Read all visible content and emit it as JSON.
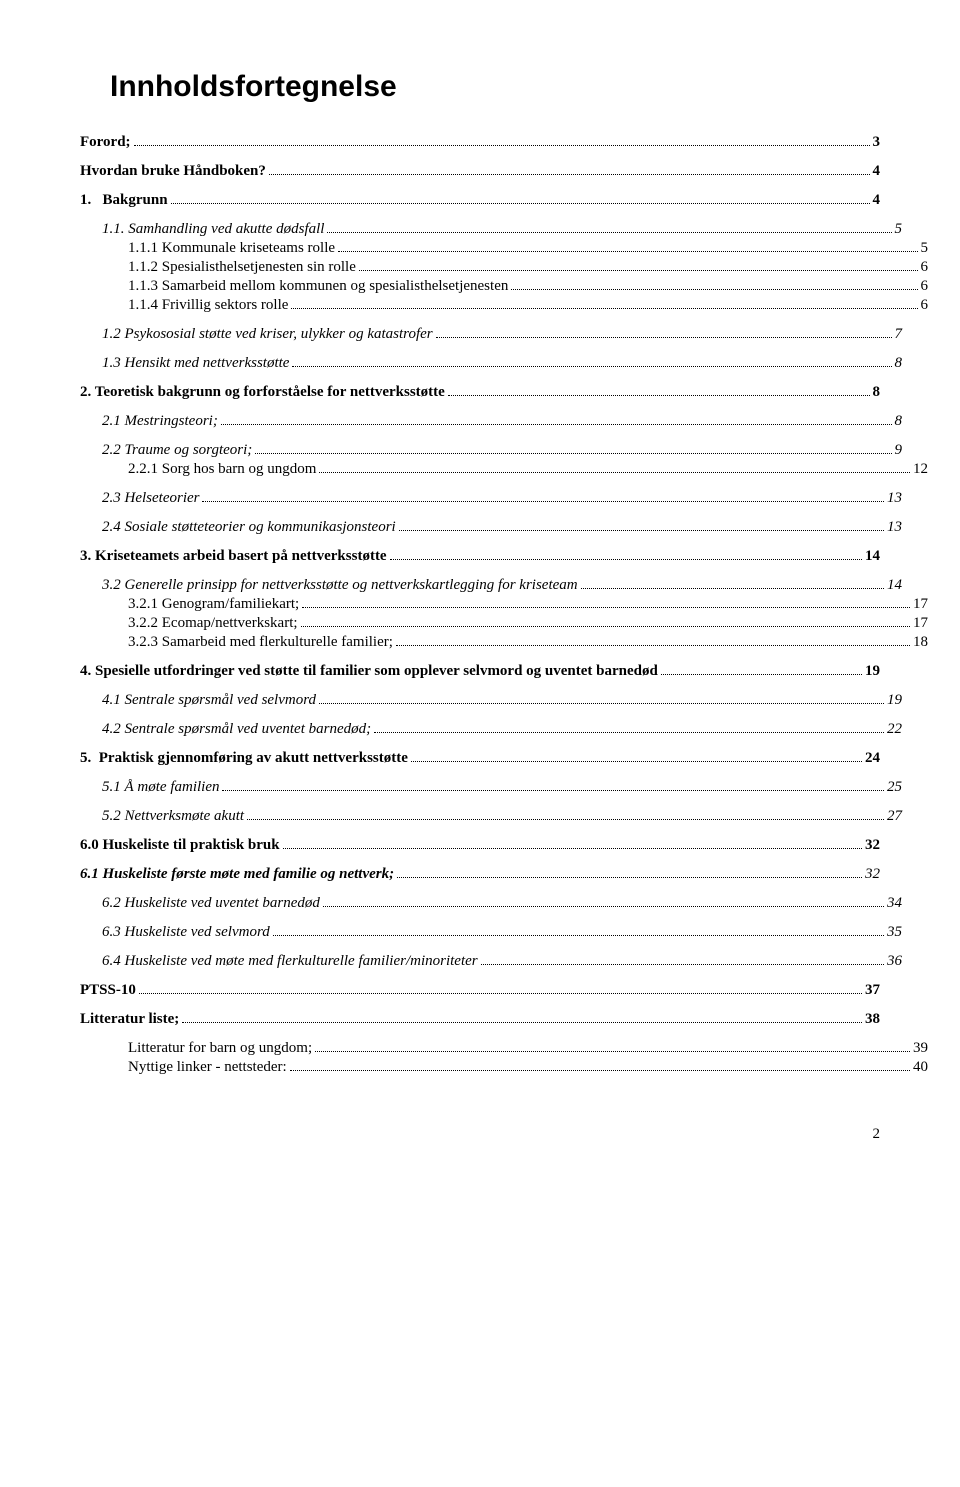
{
  "title": "Innholdsfortegnelse",
  "footer_page_number": "2",
  "entries": [
    {
      "level": "lvl1",
      "label": "Forord;",
      "page": "3",
      "tight": false
    },
    {
      "level": "lvl1",
      "label": "Hvordan bruke Håndboken?",
      "page": "4",
      "tight": false
    },
    {
      "level": "lvl1",
      "label": "1.   Bakgrunn",
      "page": "4",
      "tight": false
    },
    {
      "level": "lvl2",
      "label": "1.1. Samhandling ved akutte dødsfall",
      "page": "5",
      "tight": false
    },
    {
      "level": "lvl3",
      "label": "1.1.1 Kommunale kriseteams rolle",
      "page": "5",
      "tight": true
    },
    {
      "level": "lvl3",
      "label": "1.1.2 Spesialisthelsetjenesten sin rolle",
      "page": "6",
      "tight": true
    },
    {
      "level": "lvl3",
      "label": "1.1.3 Samarbeid mellom kommunen og spesialisthelsetjenesten",
      "page": "6",
      "tight": true
    },
    {
      "level": "lvl3",
      "label": "1.1.4 Frivillig sektors rolle",
      "page": "6",
      "tight": true
    },
    {
      "level": "lvl2",
      "label": "1.2 Psykososial støtte ved kriser, ulykker og katastrofer",
      "page": "7",
      "tight": false
    },
    {
      "level": "lvl2",
      "label": "1.3 Hensikt med nettverksstøtte",
      "page": "8",
      "tight": false
    },
    {
      "level": "lvl1",
      "label": "2. Teoretisk bakgrunn og forforståelse for nettverksstøtte",
      "page": "8",
      "tight": false
    },
    {
      "level": "lvl2",
      "label": "2.1 Mestringsteori;",
      "page": "8",
      "tight": false
    },
    {
      "level": "lvl2",
      "label": "2.2 Traume og sorgteori;",
      "page": "9",
      "tight": false
    },
    {
      "level": "lvl3",
      "label": "2.2.1 Sorg hos barn og ungdom",
      "page": "12",
      "tight": true
    },
    {
      "level": "lvl2",
      "label": "2.3 Helseteorier",
      "page": "13",
      "tight": false
    },
    {
      "level": "lvl2",
      "label": "2.4 Sosiale støtteteorier og kommunikasjonsteori",
      "page": "13",
      "tight": false
    },
    {
      "level": "lvl1",
      "label": "3. Kriseteamets arbeid basert på nettverksstøtte",
      "page": "14",
      "tight": false
    },
    {
      "level": "lvl2",
      "label": "3.2 Generelle prinsipp for nettverksstøtte og nettverkskartlegging for kriseteam",
      "page": "14",
      "tight": false
    },
    {
      "level": "lvl3",
      "label": "3.2.1 Genogram/familiekart;",
      "page": "17",
      "tight": true
    },
    {
      "level": "lvl3",
      "label": "3.2.2 Ecomap/nettverkskart;",
      "page": "17",
      "tight": true
    },
    {
      "level": "lvl3",
      "label": "3.2.3 Samarbeid med flerkulturelle familier;",
      "page": "18",
      "tight": true
    },
    {
      "level": "lvl1",
      "label": "4. Spesielle utfordringer ved støtte til familier som opplever selvmord og uventet barnedød",
      "page": "19",
      "tight": false
    },
    {
      "level": "lvl2",
      "label": "4.1 Sentrale spørsmål ved selvmord",
      "page": "19",
      "tight": false
    },
    {
      "level": "lvl2",
      "label": "4.2 Sentrale spørsmål ved uventet barnedød;",
      "page": "22",
      "tight": false
    },
    {
      "level": "lvl1",
      "label": "5.  Praktisk gjennomføring av akutt nettverksstøtte",
      "page": "24",
      "tight": false
    },
    {
      "level": "lvl2",
      "label": "5.1 Å møte familien",
      "page": "25",
      "tight": false
    },
    {
      "level": "lvl2",
      "label": "5.2  Nettverksmøte akutt",
      "page": "27",
      "tight": false
    },
    {
      "level": "lvl1",
      "label": "6.0 Huskeliste til praktisk bruk",
      "page": "32",
      "tight": false
    },
    {
      "level": "lvl2b",
      "label": "6.1 Huskeliste første møte med familie og nettverk;",
      "page": "32",
      "tight": false
    },
    {
      "level": "lvl2",
      "label": "6.2 Huskeliste ved uventet barnedød",
      "page": "34",
      "tight": false
    },
    {
      "level": "lvl2",
      "label": "6.3 Huskeliste ved selvmord",
      "page": "35",
      "tight": false
    },
    {
      "level": "lvl2",
      "label": "6.4 Huskeliste ved møte med flerkulturelle familier/minoriteter",
      "page": "36",
      "tight": false
    },
    {
      "level": "lvl1",
      "label": "PTSS-10",
      "page": "37",
      "tight": false
    },
    {
      "level": "lvl1",
      "label": "Litteratur liste;",
      "page": "38",
      "tight": false
    },
    {
      "level": "lvl3",
      "label": "Litteratur for barn og ungdom;",
      "page": "39",
      "tight": false
    },
    {
      "level": "lvl3",
      "label": "Nyttige linker - nettsteder:",
      "page": "40",
      "tight": true
    }
  ]
}
